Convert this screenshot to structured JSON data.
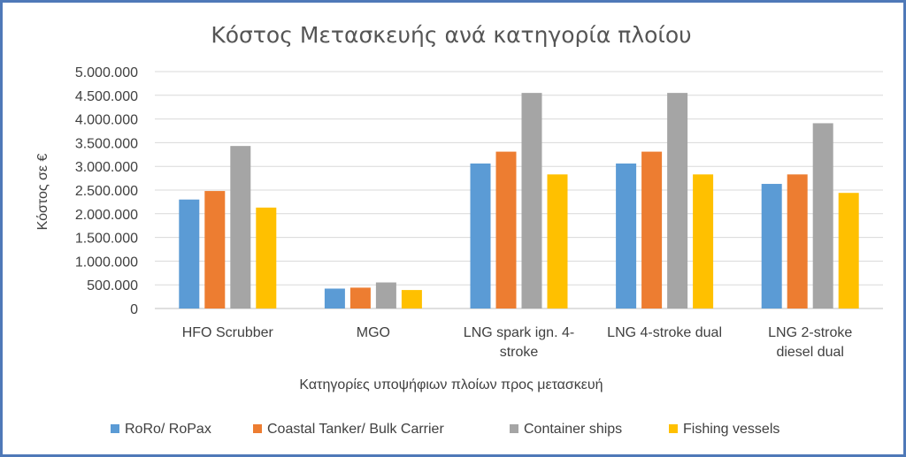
{
  "chart_data": {
    "type": "bar",
    "title": "Κόστος Μετασκευής ανά κατηγορία πλοίου",
    "xlabel": "Κατηγορίες υποψήφιων πλοίων προς μετασκευή",
    "ylabel": "Κόστος σε €",
    "ylim": [
      0,
      5000000
    ],
    "yticks": [
      0,
      500000,
      1000000,
      1500000,
      2000000,
      2500000,
      3000000,
      3500000,
      4000000,
      4500000,
      5000000
    ],
    "ytick_labels": [
      "0",
      "500.000",
      "1.000.000",
      "1.500.000",
      "2.000.000",
      "2.500.000",
      "3.000.000",
      "3.500.000",
      "4.000.000",
      "4.500.000",
      "5.000.000"
    ],
    "grid": true,
    "legend_position": "bottom",
    "categories": [
      [
        "HFO Scrubber"
      ],
      [
        "MGO"
      ],
      [
        "LNG spark ign. 4-",
        "stroke"
      ],
      [
        "LNG 4-stroke dual"
      ],
      [
        "LNG 2-stroke",
        "diesel dual"
      ]
    ],
    "series": [
      {
        "name": "RoRo/ RoPax",
        "color": "#5b9bd5",
        "values": [
          2300000,
          420000,
          3060000,
          3060000,
          2630000
        ]
      },
      {
        "name": "Coastal Tanker/ Bulk Carrier",
        "color": "#ed7d31",
        "values": [
          2480000,
          440000,
          3310000,
          3310000,
          2830000
        ]
      },
      {
        "name": "Container ships",
        "color": "#a5a5a5",
        "values": [
          3430000,
          550000,
          4550000,
          4550000,
          3910000
        ]
      },
      {
        "name": "Fishing vessels",
        "color": "#ffc000",
        "values": [
          2130000,
          390000,
          2830000,
          2830000,
          2440000
        ]
      }
    ]
  }
}
